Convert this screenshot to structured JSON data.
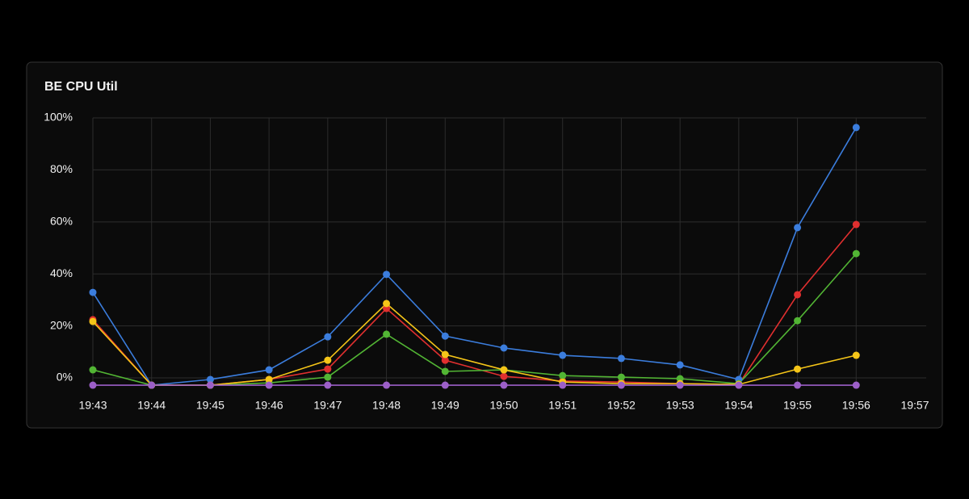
{
  "chart_data": {
    "type": "line",
    "title": "BE CPU Util",
    "categories": [
      "19:43",
      "19:44",
      "19:45",
      "19:46",
      "19:47",
      "19:48",
      "19:49",
      "19:50",
      "19:51",
      "19:52",
      "19:53",
      "19:54",
      "19:55",
      "19:56",
      "19:57"
    ],
    "series": [
      {
        "color": "#3b7ddd",
        "values": [
          32.9,
          -2.8,
          -0.6,
          3.1,
          15.8,
          39.8,
          16.1,
          11.5,
          8.7,
          7.5,
          5.0,
          -0.6,
          57.8,
          96.3,
          null
        ]
      },
      {
        "color": "#e02f2f",
        "values": [
          22.4,
          -2.8,
          -2.8,
          -0.6,
          3.4,
          26.7,
          6.8,
          0.6,
          -1.2,
          -1.6,
          -2.2,
          -2.5,
          32.0,
          59.0,
          null
        ]
      },
      {
        "color": "#52b534",
        "values": [
          3.1,
          -2.8,
          -2.8,
          -1.9,
          0.3,
          16.8,
          2.5,
          3.1,
          0.9,
          0.3,
          -0.3,
          -2.2,
          22.0,
          47.8,
          null
        ]
      },
      {
        "color": "#f5c518",
        "values": [
          21.7,
          -2.8,
          -2.8,
          -0.6,
          6.8,
          28.6,
          9.0,
          3.1,
          -1.6,
          -2.2,
          -2.2,
          -2.5,
          3.4,
          8.7,
          null
        ]
      },
      {
        "color": "#9c5fc8",
        "values": [
          -2.8,
          -2.8,
          -2.8,
          -2.8,
          -2.8,
          -2.8,
          -2.8,
          -2.8,
          -2.8,
          -2.8,
          -2.8,
          -2.8,
          -2.8,
          -2.8,
          null
        ]
      }
    ],
    "ylim": [
      -3,
      100
    ],
    "yticks": [
      {
        "value": 0,
        "label": "0%"
      },
      {
        "value": 20,
        "label": "20%"
      },
      {
        "value": 40,
        "label": "40%"
      },
      {
        "value": 60,
        "label": "60%"
      },
      {
        "value": 80,
        "label": "80%"
      },
      {
        "value": 100,
        "label": "100%"
      }
    ],
    "grid": true
  }
}
